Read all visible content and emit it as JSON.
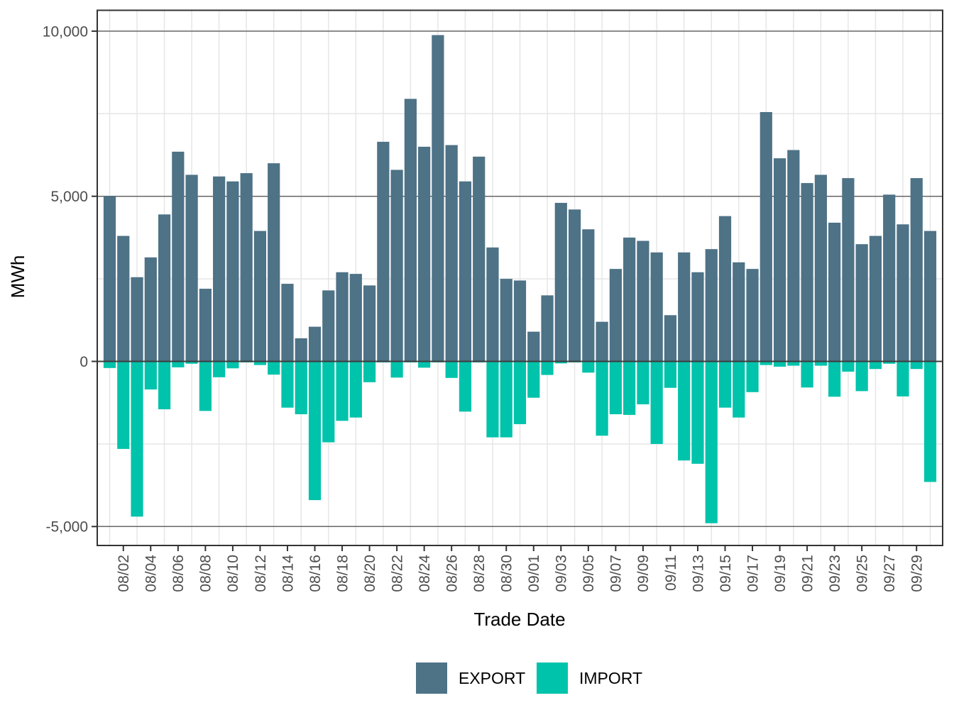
{
  "chart_data": {
    "type": "bar",
    "title": "",
    "xlabel": "Trade Date",
    "ylabel": "MWh",
    "ylim": [
      -5640,
      10620
    ],
    "grid": true,
    "legend_position": "bottom",
    "categories": [
      "08/01",
      "08/02",
      "08/03",
      "08/04",
      "08/05",
      "08/06",
      "08/07",
      "08/08",
      "08/09",
      "08/10",
      "08/11",
      "08/12",
      "08/13",
      "08/14",
      "08/15",
      "08/16",
      "08/17",
      "08/18",
      "08/19",
      "08/20",
      "08/21",
      "08/22",
      "08/23",
      "08/24",
      "08/25",
      "08/26",
      "08/27",
      "08/28",
      "08/29",
      "08/30",
      "08/31",
      "09/01",
      "09/02",
      "09/03",
      "09/04",
      "09/05",
      "09/06",
      "09/07",
      "09/08",
      "09/09",
      "09/10",
      "09/11",
      "09/12",
      "09/13",
      "09/14",
      "09/15",
      "09/16",
      "09/17",
      "09/18",
      "09/19",
      "09/20",
      "09/21",
      "09/22",
      "09/23",
      "09/24",
      "09/25",
      "09/26",
      "09/27",
      "09/28",
      "09/29",
      "09/30"
    ],
    "x_tick_labels": [
      "08/02",
      "08/04",
      "08/06",
      "08/08",
      "08/10",
      "08/12",
      "08/14",
      "08/16",
      "08/18",
      "08/20",
      "08/22",
      "08/24",
      "08/26",
      "08/28",
      "08/30",
      "09/01",
      "09/03",
      "09/05",
      "09/07",
      "09/09",
      "09/11",
      "09/13",
      "09/15",
      "09/17",
      "09/19",
      "09/21",
      "09/23",
      "09/25",
      "09/27",
      "09/29"
    ],
    "y_ticks_major": [
      {
        "value": 10000,
        "label": "10,000"
      },
      {
        "value": 5000,
        "label": "5,000"
      },
      {
        "value": 0,
        "label": "0"
      },
      {
        "value": -5000,
        "label": "-5,000"
      }
    ],
    "y_ticks_minor": [
      7500,
      2500,
      -2500
    ],
    "series": [
      {
        "name": "EXPORT",
        "color": "#4e7286",
        "values": [
          5000,
          3800,
          2550,
          3150,
          4450,
          6350,
          5650,
          2200,
          5600,
          5450,
          5700,
          3950,
          6000,
          2350,
          700,
          1050,
          2150,
          2700,
          2650,
          2300,
          6650,
          5800,
          7950,
          6500,
          9880,
          6550,
          5450,
          6200,
          3450,
          2500,
          2450,
          900,
          2000,
          4800,
          4600,
          4000,
          1200,
          2800,
          3750,
          3650,
          3300,
          1400,
          3300,
          2700,
          3400,
          4400,
          3000,
          2800,
          7550,
          6150,
          6400,
          5400,
          5650,
          4200,
          5550,
          3550,
          3800,
          5050,
          4150,
          5550,
          3950
        ]
      },
      {
        "name": "IMPORT",
        "color": "#00c3ab",
        "values": [
          -200,
          -2650,
          -4700,
          -850,
          -1450,
          -180,
          -70,
          -1500,
          -480,
          -210,
          -30,
          -110,
          -400,
          -1400,
          -1600,
          -4200,
          -2450,
          -1800,
          -1700,
          -630,
          -30,
          -490,
          -30,
          -190,
          -30,
          -500,
          -1520,
          -30,
          -2300,
          -2300,
          -1900,
          -1100,
          -410,
          -60,
          -30,
          -340,
          -2250,
          -1600,
          -1620,
          -1300,
          -2500,
          -800,
          -3000,
          -3100,
          -4900,
          -1400,
          -1700,
          -930,
          -110,
          -160,
          -130,
          -790,
          -130,
          -1070,
          -310,
          -900,
          -230,
          -70,
          -1060,
          -230,
          -3650
        ]
      }
    ],
    "style": {
      "grid_major_color": "#666666",
      "grid_minor_color": "#e6e6e6",
      "axis_color": "#333333",
      "tick_label_color": "#4d4d4d",
      "title_color": "#000000",
      "background": "#ffffff"
    }
  },
  "legend": {
    "export_label": "EXPORT",
    "import_label": "IMPORT"
  }
}
